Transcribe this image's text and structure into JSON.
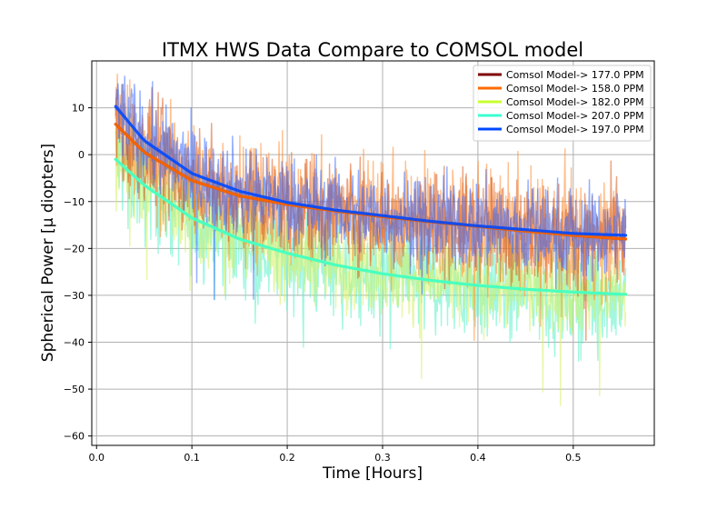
{
  "chart_data": {
    "type": "line",
    "title": "ITMX HWS Data Compare to COMSOL model",
    "xlabel": "Time [Hours]",
    "ylabel": "Spherical Power [μ diopters]",
    "xlim": [
      -0.005,
      0.585
    ],
    "ylim": [
      -62,
      20
    ],
    "xticks": [
      0.0,
      0.1,
      0.2,
      0.3,
      0.4,
      0.5
    ],
    "xtick_labels": [
      "0.0",
      "0.1",
      "0.2",
      "0.3",
      "0.4",
      "0.5"
    ],
    "yticks": [
      10,
      0,
      -10,
      -20,
      -30,
      -40,
      -50,
      -60
    ],
    "ytick_labels": [
      "10",
      "0",
      "−10",
      "−20",
      "−30",
      "−40",
      "−50",
      "−60"
    ],
    "grid": true,
    "legend_position": "top-right",
    "x_range_data": [
      0.02,
      0.555
    ],
    "series": [
      {
        "name": "Comsol Model-> 177.0 PPM",
        "color": "#7f0000",
        "noisy_color": "#d95a1a",
        "x": [
          0.02,
          0.05,
          0.1,
          0.15,
          0.2,
          0.25,
          0.3,
          0.35,
          0.4,
          0.45,
          0.5,
          0.555
        ],
        "y": [
          6.5,
          0.5,
          -5.5,
          -8.8,
          -10.6,
          -12.0,
          -13.2,
          -14.3,
          -15.3,
          -16.3,
          -17.2,
          -18.0
        ]
      },
      {
        "name": "Comsol Model-> 158.0 PPM",
        "color": "#ff6a00",
        "noisy_color": "#ff8a30",
        "x": [
          0.02,
          0.05,
          0.1,
          0.15,
          0.2,
          0.25,
          0.3,
          0.35,
          0.4,
          0.45,
          0.5,
          0.555
        ],
        "y": [
          6.5,
          0.5,
          -5.5,
          -8.8,
          -10.6,
          -12.0,
          -13.2,
          -14.3,
          -15.3,
          -16.3,
          -17.2,
          -18.0
        ]
      },
      {
        "name": "Comsol Model-> 182.0 PPM",
        "color": "#c8ff32",
        "noisy_color": "#d4f060",
        "x": [
          0.02,
          0.05,
          0.1,
          0.15,
          0.2,
          0.25,
          0.3,
          0.35,
          0.4,
          0.45,
          0.5,
          0.555
        ],
        "y": [
          -1.0,
          -6.5,
          -13.5,
          -18.0,
          -21.0,
          -23.5,
          -25.4,
          -26.8,
          -27.9,
          -28.7,
          -29.3,
          -29.8
        ]
      },
      {
        "name": "Comsol Model-> 207.0 PPM",
        "color": "#3cffd0",
        "noisy_color": "#55f0c8",
        "x": [
          0.02,
          0.05,
          0.1,
          0.15,
          0.2,
          0.25,
          0.3,
          0.35,
          0.4,
          0.45,
          0.5,
          0.555
        ],
        "y": [
          -1.0,
          -6.5,
          -13.5,
          -18.0,
          -21.0,
          -23.5,
          -25.4,
          -26.8,
          -27.9,
          -28.7,
          -29.3,
          -29.8
        ]
      },
      {
        "name": "Comsol Model-> 197.0 PPM",
        "color": "#0048ff",
        "noisy_color": "#3a6bff",
        "x": [
          0.02,
          0.05,
          0.1,
          0.15,
          0.2,
          0.25,
          0.3,
          0.35,
          0.4,
          0.45,
          0.5,
          0.555
        ],
        "y": [
          10.3,
          3.0,
          -4.0,
          -7.8,
          -10.2,
          -11.8,
          -13.0,
          -14.2,
          -15.2,
          -16.0,
          -16.8,
          -17.2
        ]
      }
    ]
  }
}
